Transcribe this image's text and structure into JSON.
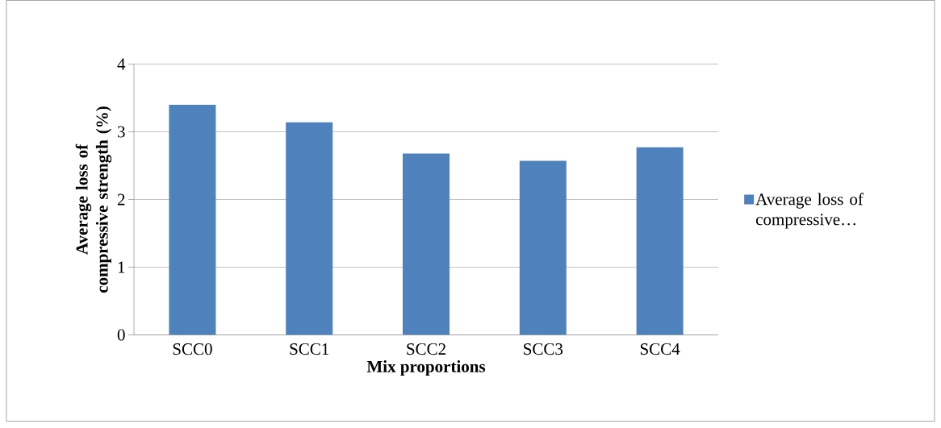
{
  "chart_data": {
    "type": "bar",
    "xlabel": "Mix proportions",
    "ylabel": "Average loss of compressive strength (%)",
    "categories": [
      "SCC0",
      "SCC1",
      "SCC2",
      "SCC3",
      "SCC4"
    ],
    "series": [
      {
        "name": "Average loss of compressive…",
        "color": "#4f81bd",
        "values": [
          3.4,
          3.14,
          2.68,
          2.57,
          2.77
        ]
      }
    ],
    "ylim": [
      0,
      4
    ],
    "yticks": [
      0,
      1,
      2,
      3,
      4
    ],
    "grid": "y",
    "legend": "right"
  }
}
